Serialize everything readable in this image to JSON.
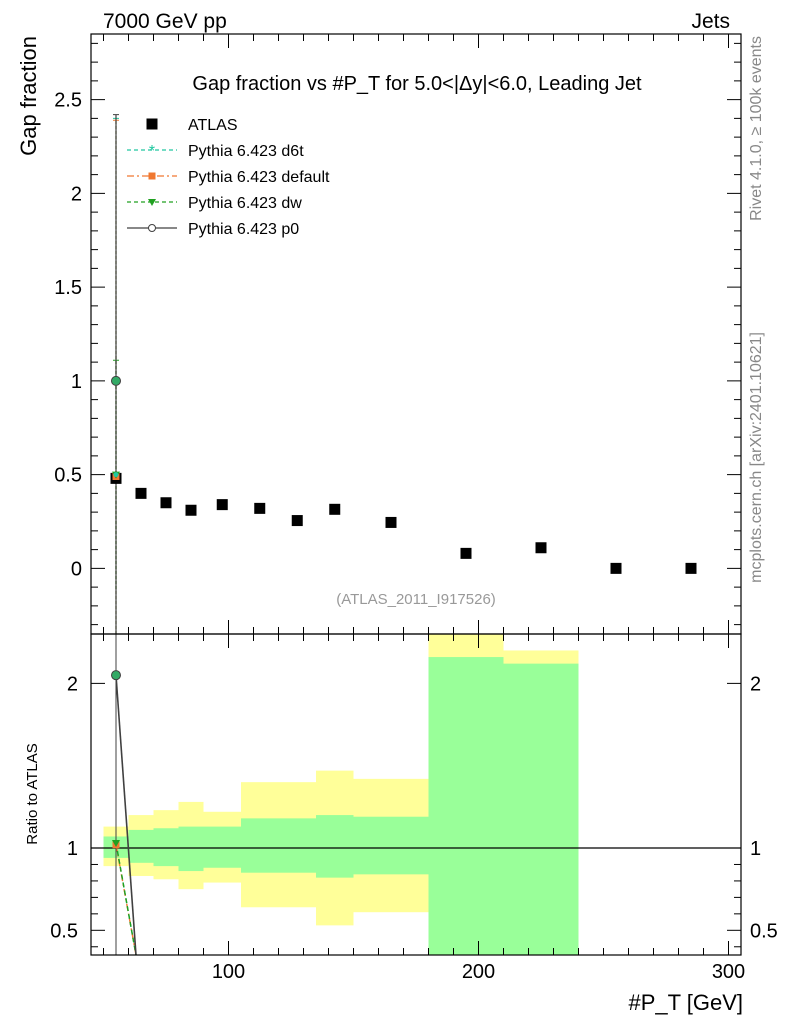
{
  "header": {
    "left": "7000 GeV pp",
    "right": "Jets",
    "side_top": "Rivet 4.1.0, ≥ 100k events",
    "side_bottom": "mcplots.cern.ch [arXiv:2401.10621]"
  },
  "main": {
    "title": "Gap fraction vs #P_T for 5.0<|Δy|<6.0, Leading Jet",
    "ylabel": "Gap fraction",
    "watermark": "(ATLAS_2011_I917526)"
  },
  "ratio": {
    "ylabel": "Ratio to ATLAS"
  },
  "xaxis": {
    "label": "#P_T [GeV]"
  },
  "colors": {
    "d6t": "#20c8a0",
    "default": "#f07830",
    "dw": "#20a020",
    "p0": "#404040",
    "band_inner": "#99ff99",
    "band_outer": "#ffff99"
  },
  "chart_data": [
    {
      "type": "scatter",
      "panel": "main",
      "title": "Gap fraction vs #P_T for 5.0<|Δy|<6.0, Leading Jet",
      "xlabel": "#P_T [GeV]",
      "ylabel": "Gap fraction",
      "xlim": [
        45,
        305
      ],
      "ylim": [
        -0.35,
        2.85
      ],
      "xticks": [
        100,
        200,
        300
      ],
      "yticks": [
        0,
        0.5,
        1,
        1.5,
        2,
        2.5
      ],
      "ytick_labels": [
        "0",
        "0.5",
        "1",
        "1.5",
        "2",
        "2.5"
      ],
      "legend": {
        "placement": "top-left",
        "entries": [
          {
            "key": "atlas",
            "label": "ATLAS"
          },
          {
            "key": "d6t",
            "label": "Pythia 6.423 d6t"
          },
          {
            "key": "default",
            "label": "Pythia 6.423 default"
          },
          {
            "key": "dw",
            "label": "Pythia 6.423 dw"
          },
          {
            "key": "p0",
            "label": "Pythia 6.423 p0"
          }
        ]
      },
      "data": {
        "x": [
          55,
          65,
          75,
          85,
          97.5,
          112.5,
          127.5,
          142.5,
          165,
          195,
          225,
          255,
          285
        ],
        "y": [
          0.48,
          0.4,
          0.35,
          0.31,
          0.34,
          0.32,
          0.255,
          0.315,
          0.245,
          0.08,
          0.11,
          0.0,
          0.0
        ]
      },
      "series": [
        {
          "name": "Pythia 6.423 d6t",
          "key": "d6t",
          "x": [
            55
          ],
          "y": [
            0.5
          ],
          "yerr": [
            1.9
          ]
        },
        {
          "name": "Pythia 6.423 default",
          "key": "default",
          "x": [
            55
          ],
          "y": [
            0.49
          ],
          "yerr": [
            1.9
          ]
        },
        {
          "name": "Pythia 6.423 dw",
          "key": "dw",
          "x": [
            55
          ],
          "y": [
            0.5
          ],
          "yerr": [
            0.61
          ]
        },
        {
          "name": "Pythia 6.423 p0",
          "key": "p0",
          "x": [
            55
          ],
          "y": [
            1.0
          ],
          "yerr": [
            1.42
          ]
        }
      ]
    },
    {
      "type": "line",
      "panel": "ratio",
      "ylabel": "Ratio to ATLAS",
      "xlim": [
        45,
        305
      ],
      "ylim": [
        0.35,
        2.3
      ],
      "yticks": [
        0.5,
        1,
        2
      ],
      "ytick_labels": [
        "0.5",
        "1",
        "2"
      ],
      "bands": [
        {
          "x0": 50,
          "x1": 60,
          "inner": [
            0.94,
            1.07
          ],
          "outer": [
            0.89,
            1.13
          ]
        },
        {
          "x0": 60,
          "x1": 70,
          "inner": [
            0.91,
            1.11
          ],
          "outer": [
            0.83,
            1.2
          ]
        },
        {
          "x0": 70,
          "x1": 80,
          "inner": [
            0.89,
            1.12
          ],
          "outer": [
            0.81,
            1.23
          ]
        },
        {
          "x0": 80,
          "x1": 90,
          "inner": [
            0.86,
            1.13
          ],
          "outer": [
            0.75,
            1.28
          ]
        },
        {
          "x0": 90,
          "x1": 105,
          "inner": [
            0.88,
            1.13
          ],
          "outer": [
            0.79,
            1.22
          ]
        },
        {
          "x0": 105,
          "x1": 120,
          "inner": [
            0.85,
            1.18
          ],
          "outer": [
            0.64,
            1.4
          ]
        },
        {
          "x0": 120,
          "x1": 135,
          "inner": [
            0.85,
            1.18
          ],
          "outer": [
            0.64,
            1.4
          ]
        },
        {
          "x0": 135,
          "x1": 150,
          "inner": [
            0.82,
            1.2
          ],
          "outer": [
            0.53,
            1.47
          ]
        },
        {
          "x0": 150,
          "x1": 180,
          "inner": [
            0.84,
            1.19
          ],
          "outer": [
            0.61,
            1.42
          ]
        },
        {
          "x0": 180,
          "x1": 210,
          "inner": [
            0.35,
            2.16
          ],
          "outer": [
            0.35,
            2.3
          ]
        },
        {
          "x0": 210,
          "x1": 240,
          "inner": [
            0.35,
            2.12
          ],
          "outer": [
            0.35,
            2.2
          ]
        }
      ],
      "series": [
        {
          "name": "Pythia 6.423 d6t",
          "key": "d6t",
          "x": [
            55,
            63
          ],
          "y": [
            1.03,
            0.0
          ]
        },
        {
          "name": "Pythia 6.423 default",
          "key": "default",
          "x": [
            55,
            63
          ],
          "y": [
            1.02,
            0.0
          ]
        },
        {
          "name": "Pythia 6.423 dw",
          "key": "dw",
          "x": [
            55,
            63
          ],
          "y": [
            1.03,
            0.0
          ]
        },
        {
          "name": "Pythia 6.423 p0",
          "key": "p0",
          "x": [
            55,
            63
          ],
          "y": [
            2.05,
            0.0
          ]
        }
      ]
    }
  ]
}
